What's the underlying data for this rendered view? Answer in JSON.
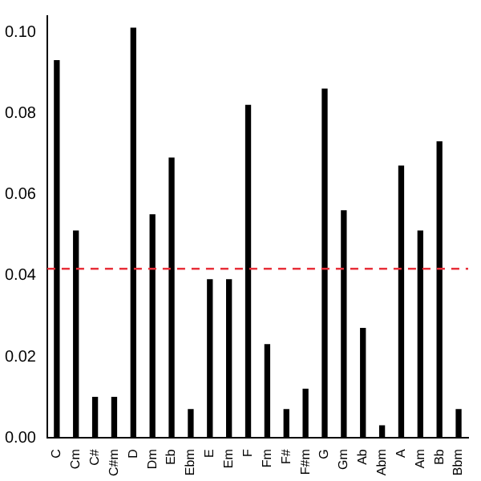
{
  "chart_data": {
    "type": "bar",
    "categories": [
      "C",
      "Cm",
      "C#",
      "C#m",
      "D",
      "Dm",
      "Eb",
      "Ebm",
      "E",
      "Em",
      "F",
      "Fm",
      "F#",
      "F#m",
      "G",
      "Gm",
      "Ab",
      "Abm",
      "A",
      "Am",
      "Bb",
      "Bbm"
    ],
    "values": [
      0.093,
      0.051,
      0.01,
      0.01,
      0.101,
      0.055,
      0.069,
      0.007,
      0.039,
      0.039,
      0.082,
      0.023,
      0.007,
      0.012,
      0.086,
      0.056,
      0.027,
      0.003,
      0.067,
      0.051,
      0.073,
      0.007
    ],
    "color": "#000000",
    "ylim": [
      0,
      0.104
    ],
    "yticks": [
      {
        "value": 0,
        "label": "0.00"
      },
      {
        "value": 0.02,
        "label": "0.02"
      },
      {
        "value": 0.04,
        "label": "0.04"
      },
      {
        "value": 0.06,
        "label": "0.06"
      },
      {
        "value": 0.08,
        "label": "0.08"
      },
      {
        "value": 0.1,
        "label": "0.10"
      }
    ],
    "ref_lines": [
      {
        "axis": "y",
        "value": 0.0417,
        "color": "#e8303a",
        "line_style": "dashed"
      }
    ],
    "grid": false,
    "legend": false
  }
}
